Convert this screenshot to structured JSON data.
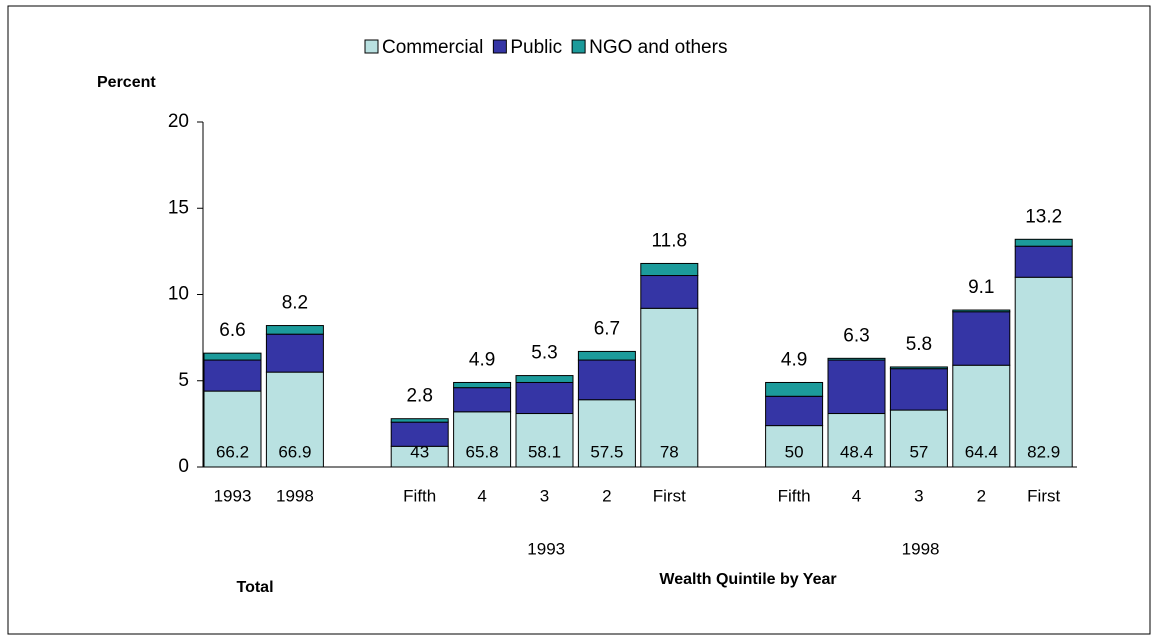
{
  "chart_data": {
    "type": "stacked_bar",
    "y_label": "Percent",
    "x_label": "Wealth Quintile by Year",
    "groups": [
      {
        "label": "Total",
        "categories": [
          "1993",
          "1998"
        ]
      },
      {
        "label": "1993",
        "categories": [
          "Fifth",
          "4",
          "3",
          "2",
          "First"
        ]
      },
      {
        "label": "1998",
        "categories": [
          "Fifth",
          "4",
          "3",
          "2",
          "First"
        ]
      }
    ],
    "series": [
      {
        "name": "Commercial",
        "color": "#b9e1e1",
        "values": [
          4.4,
          5.5,
          1.2,
          3.2,
          3.1,
          3.9,
          9.2,
          2.4,
          3.1,
          3.3,
          5.9,
          11.0
        ],
        "share_labels": [
          66.2,
          66.9,
          43.0,
          65.8,
          58.1,
          57.5,
          78.0,
          50.0,
          48.4,
          57.0,
          64.4,
          82.9
        ]
      },
      {
        "name": "Public",
        "color": "#3535a5",
        "values": [
          1.8,
          2.2,
          1.4,
          1.4,
          1.8,
          2.3,
          1.9,
          1.7,
          3.1,
          2.4,
          3.1,
          1.8
        ]
      },
      {
        "name": "NGO and others",
        "color": "#1c9b9b",
        "values": [
          0.4,
          0.5,
          0.2,
          0.3,
          0.4,
          0.5,
          0.7,
          0.8,
          0.1,
          0.1,
          0.1,
          0.4
        ]
      }
    ],
    "totals": [
      6.6,
      8.2,
      2.8,
      4.9,
      5.3,
      6.7,
      11.8,
      4.9,
      6.3,
      5.8,
      9.1,
      13.2
    ],
    "ylim": [
      0,
      20
    ],
    "yticks": [
      0,
      5,
      10,
      15,
      20
    ]
  }
}
